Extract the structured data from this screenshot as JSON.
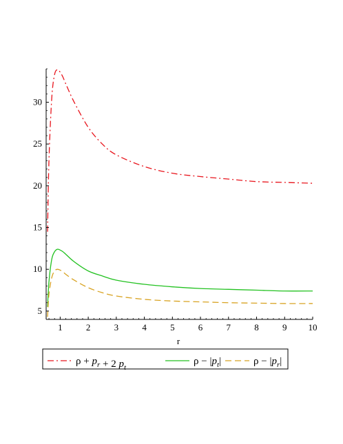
{
  "chart_data": {
    "type": "line",
    "xlabel": "r",
    "ylabel": "",
    "xlim": [
      0.5,
      10
    ],
    "ylim": [
      4,
      34
    ],
    "x_ticks": [
      1,
      2,
      3,
      4,
      5,
      6,
      7,
      8,
      9,
      10
    ],
    "y_ticks": [
      5,
      10,
      15,
      20,
      25,
      30
    ],
    "grid": false,
    "legend_position": "bottom",
    "series": [
      {
        "name": "ρ + p_r + 2 p_t",
        "legend_parts": [
          "ρ + ",
          "p",
          "r",
          " + 2 ",
          "p",
          "t"
        ],
        "color": "#e8131b",
        "style": "dash-dot",
        "x": [
          0.55,
          0.6,
          0.7,
          0.8,
          0.9,
          1.0,
          1.1,
          1.2,
          1.5,
          2.0,
          2.5,
          3.0,
          4.0,
          5.0,
          6.0,
          7.0,
          8.0,
          9.0,
          10.0
        ],
        "y": [
          14.5,
          23.0,
          30.5,
          33.3,
          33.9,
          33.6,
          33.0,
          32.2,
          30.0,
          27.0,
          25.0,
          23.7,
          22.3,
          21.5,
          21.1,
          20.8,
          20.5,
          20.4,
          20.3
        ]
      },
      {
        "name": "ρ − |p_t|",
        "legend_parts": [
          "ρ − ",
          "p",
          "t"
        ],
        "color": "#21c11f",
        "style": "solid",
        "x": [
          0.55,
          0.6,
          0.7,
          0.8,
          0.9,
          1.0,
          1.1,
          1.2,
          1.5,
          2.0,
          2.5,
          3.0,
          4.0,
          5.0,
          6.0,
          7.0,
          8.0,
          9.0,
          10.0
        ],
        "y": [
          5.5,
          8.5,
          11.2,
          12.1,
          12.4,
          12.3,
          12.1,
          11.8,
          10.9,
          9.8,
          9.2,
          8.7,
          8.2,
          7.9,
          7.7,
          7.6,
          7.5,
          7.4,
          7.4
        ]
      },
      {
        "name": "ρ − |p_r|",
        "legend_parts": [
          "ρ − ",
          "p",
          "r"
        ],
        "color": "#d8a220",
        "style": "dash",
        "x": [
          0.55,
          0.6,
          0.7,
          0.8,
          0.9,
          1.0,
          1.1,
          1.2,
          1.5,
          2.0,
          2.5,
          3.0,
          4.0,
          5.0,
          6.0,
          7.0,
          8.0,
          9.0,
          10.0
        ],
        "y": [
          4.3,
          7.0,
          9.0,
          9.8,
          10.0,
          9.9,
          9.7,
          9.4,
          8.7,
          7.8,
          7.2,
          6.8,
          6.4,
          6.2,
          6.1,
          6.0,
          5.95,
          5.9,
          5.9
        ]
      }
    ]
  }
}
